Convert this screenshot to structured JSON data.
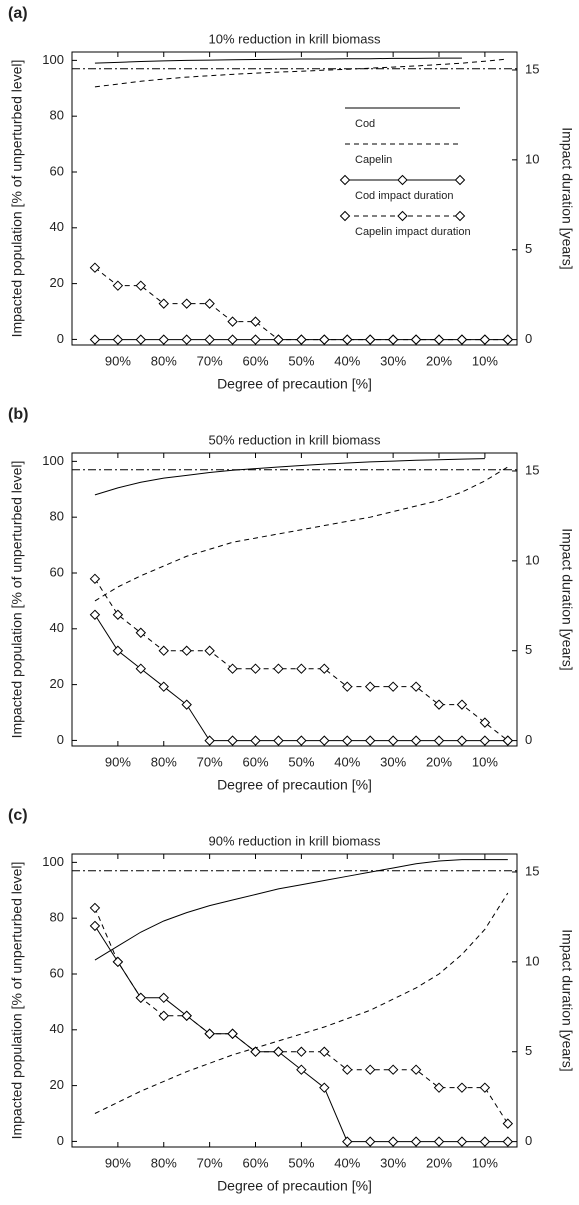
{
  "chart_data": [
    {
      "type": "line",
      "panel_label": "(a)",
      "title": "10% reduction in krill biomass",
      "xlabel": "Degree of precaution [%]",
      "ylabel": "Impacted population [% of unperturbed level]",
      "y2label": "Impact duration [years]",
      "x": [
        95,
        90,
        85,
        80,
        75,
        70,
        65,
        60,
        55,
        50,
        45,
        40,
        35,
        30,
        25,
        20,
        15,
        10,
        5
      ],
      "xlim": [
        100,
        3
      ],
      "xticks": [
        {
          "value": 90,
          "label": "90%"
        },
        {
          "value": 80,
          "label": "80%"
        },
        {
          "value": 70,
          "label": "70%"
        },
        {
          "value": 60,
          "label": "60%"
        },
        {
          "value": 50,
          "label": "50%"
        },
        {
          "value": 40,
          "label": "40%"
        },
        {
          "value": 30,
          "label": "30%"
        },
        {
          "value": 20,
          "label": "20%"
        },
        {
          "value": 10,
          "label": "10%"
        }
      ],
      "ylim": [
        -2,
        103
      ],
      "yticks": [
        0,
        20,
        40,
        60,
        80,
        100
      ],
      "y2lim": [
        -0.3,
        16
      ],
      "y2ticks": [
        0,
        5,
        10,
        15
      ],
      "hline": 97,
      "legend": "upper right",
      "series": [
        {
          "name": "Cod",
          "color": "#000000",
          "style": "solid",
          "values": [
            99,
            99.3,
            99.6,
            99.8,
            100,
            100.1,
            100.2,
            100.3,
            100.4,
            100.5,
            100.5,
            100.6,
            100.6,
            100.7,
            100.7,
            100.8,
            100.8,
            null,
            null
          ]
        },
        {
          "name": "Capelin",
          "color": "#000000",
          "style": "dashed",
          "values": [
            90.5,
            91.5,
            92.5,
            93.3,
            94,
            94.5,
            95,
            95.4,
            95.8,
            96.1,
            96.5,
            96.8,
            97.2,
            97.6,
            98,
            98.5,
            99,
            99.7,
            100.5
          ]
        },
        {
          "name": "Cod impact duration",
          "color": "#000000",
          "style": "solid",
          "marker": "diamond",
          "axis": "y2",
          "values": [
            0,
            0,
            0,
            0,
            0,
            0,
            0,
            0,
            0,
            0,
            0,
            0,
            0,
            0,
            0,
            0,
            0,
            0,
            0
          ]
        },
        {
          "name": "Capelin impact duration",
          "color": "#000000",
          "style": "dashed",
          "marker": "diamond",
          "axis": "y2",
          "values": [
            4,
            3,
            3,
            2,
            2,
            2,
            1,
            1,
            0,
            0,
            0,
            0,
            0,
            0,
            0,
            0,
            0,
            0,
            0
          ]
        }
      ]
    },
    {
      "type": "line",
      "panel_label": "(b)",
      "title": "50% reduction in krill biomass",
      "xlabel": "Degree of precaution [%]",
      "ylabel": "Impacted population [% of unperturbed level]",
      "y2label": "Impact duration [years]",
      "x": [
        95,
        90,
        85,
        80,
        75,
        70,
        65,
        60,
        55,
        50,
        45,
        40,
        35,
        30,
        25,
        20,
        15,
        10,
        5
      ],
      "xlim": [
        100,
        3
      ],
      "xticks": [
        {
          "value": 90,
          "label": "90%"
        },
        {
          "value": 80,
          "label": "80%"
        },
        {
          "value": 70,
          "label": "70%"
        },
        {
          "value": 60,
          "label": "60%"
        },
        {
          "value": 50,
          "label": "50%"
        },
        {
          "value": 40,
          "label": "40%"
        },
        {
          "value": 30,
          "label": "30%"
        },
        {
          "value": 20,
          "label": "20%"
        },
        {
          "value": 10,
          "label": "10%"
        }
      ],
      "ylim": [
        -2,
        103
      ],
      "yticks": [
        0,
        20,
        40,
        60,
        80,
        100
      ],
      "y2lim": [
        -0.3,
        16
      ],
      "y2ticks": [
        0,
        5,
        10,
        15
      ],
      "hline": 97,
      "series": [
        {
          "color": "#000000",
          "style": "solid",
          "values": [
            88,
            90.5,
            92.5,
            94,
            95,
            96,
            96.8,
            97.4,
            98,
            98.5,
            99,
            99.4,
            99.8,
            100.1,
            100.4,
            100.6,
            100.8,
            101,
            null
          ]
        },
        {
          "color": "#000000",
          "style": "dashed",
          "values": [
            50,
            55,
            59,
            62.5,
            66,
            68.5,
            71,
            72.5,
            74,
            75.5,
            77,
            78.5,
            80,
            82,
            84,
            86,
            89,
            93,
            98
          ]
        },
        {
          "color": "#000000",
          "style": "solid",
          "marker": "diamond",
          "axis": "y2",
          "values": [
            7,
            5,
            4,
            3,
            2,
            0,
            0,
            0,
            0,
            0,
            0,
            0,
            0,
            0,
            0,
            0,
            0,
            0,
            0
          ]
        },
        {
          "color": "#000000",
          "style": "dashed",
          "marker": "diamond",
          "axis": "y2",
          "values": [
            9,
            7,
            6,
            5,
            5,
            5,
            4,
            4,
            4,
            4,
            4,
            3,
            3,
            3,
            3,
            2,
            2,
            1,
            0
          ]
        }
      ]
    },
    {
      "type": "line",
      "panel_label": "(c)",
      "title": "90% reduction in krill biomass",
      "xlabel": "Degree of precaution [%]",
      "ylabel": "Impacted population [% of unperturbed level]",
      "y2label": "Impact duration [years]",
      "x": [
        95,
        90,
        85,
        80,
        75,
        70,
        65,
        60,
        55,
        50,
        45,
        40,
        35,
        30,
        25,
        20,
        15,
        10,
        5
      ],
      "xlim": [
        100,
        3
      ],
      "xticks": [
        {
          "value": 90,
          "label": "90%"
        },
        {
          "value": 80,
          "label": "80%"
        },
        {
          "value": 70,
          "label": "70%"
        },
        {
          "value": 60,
          "label": "60%"
        },
        {
          "value": 50,
          "label": "50%"
        },
        {
          "value": 40,
          "label": "40%"
        },
        {
          "value": 30,
          "label": "30%"
        },
        {
          "value": 20,
          "label": "20%"
        },
        {
          "value": 10,
          "label": "10%"
        }
      ],
      "ylim": [
        -2,
        103
      ],
      "yticks": [
        0,
        20,
        40,
        60,
        80,
        100
      ],
      "y2lim": [
        -0.3,
        16
      ],
      "y2ticks": [
        0,
        5,
        10,
        15
      ],
      "hline": 97,
      "series": [
        {
          "color": "#000000",
          "style": "solid",
          "values": [
            65,
            70,
            75,
            79,
            82,
            84.5,
            86.5,
            88.5,
            90.5,
            92,
            93.5,
            95,
            96.5,
            98,
            99.5,
            100.5,
            101,
            101,
            101
          ]
        },
        {
          "color": "#000000",
          "style": "dashed",
          "values": [
            10,
            14,
            18,
            21.5,
            25,
            28,
            31,
            33.5,
            36,
            38.5,
            41,
            44,
            47,
            51,
            55,
            60,
            67,
            76,
            89
          ]
        },
        {
          "color": "#000000",
          "style": "solid",
          "marker": "diamond",
          "axis": "y2",
          "values": [
            12,
            10,
            8,
            8,
            7,
            6,
            6,
            5,
            5,
            4,
            3,
            0,
            0,
            0,
            0,
            0,
            0,
            0,
            0
          ]
        },
        {
          "color": "#000000",
          "style": "dashed",
          "marker": "diamond",
          "axis": "y2",
          "values": [
            13,
            10,
            8,
            7,
            7,
            6,
            6,
            5,
            5,
            5,
            5,
            4,
            4,
            4,
            4,
            3,
            3,
            3,
            1
          ]
        }
      ]
    }
  ]
}
